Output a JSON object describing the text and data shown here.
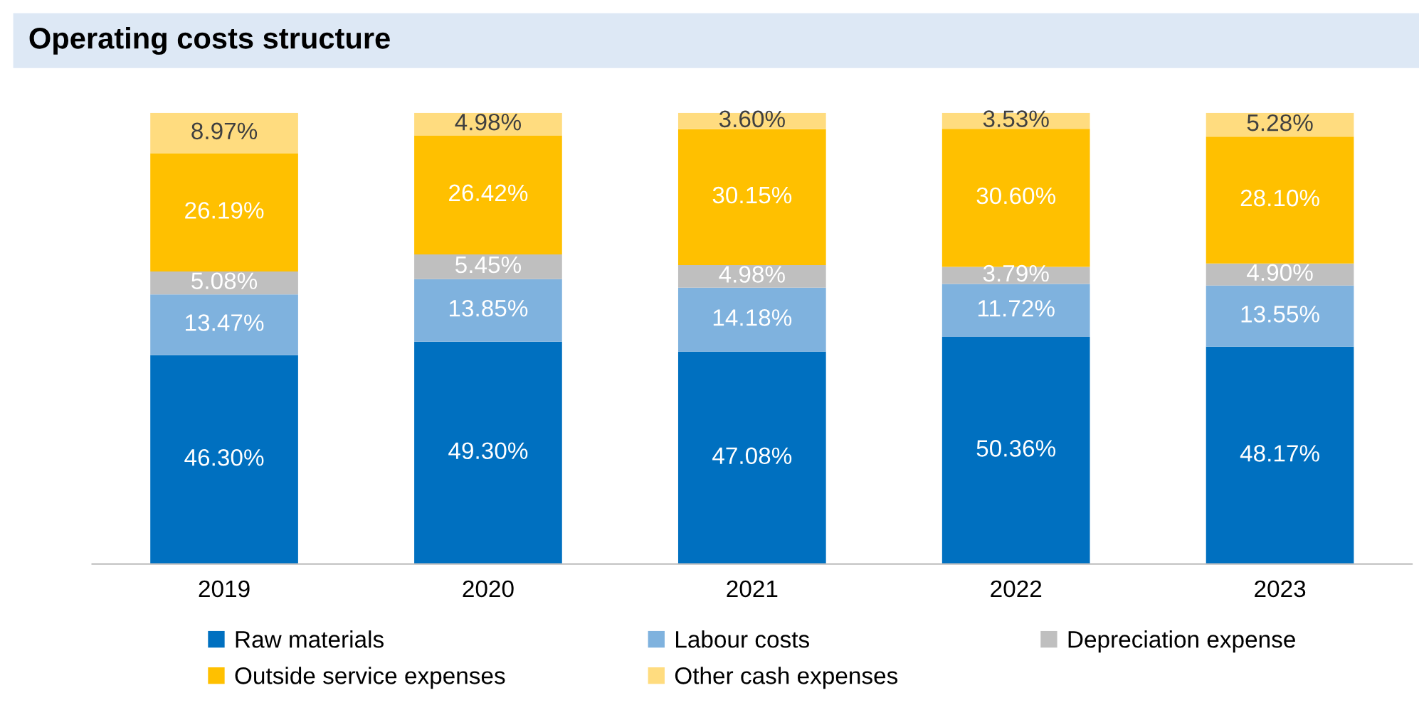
{
  "chart_data": {
    "type": "bar",
    "title": "Operating costs structure",
    "stacked": true,
    "legend": "bottom",
    "grid": false,
    "categories": [
      "2019",
      "2020",
      "2021",
      "2022",
      "2023"
    ],
    "series": [
      {
        "name": "Raw materials",
        "color": "#0070c0",
        "values": [
          46.3,
          49.3,
          47.08,
          50.36,
          48.17
        ],
        "value_labels": [
          "46.30%",
          "49.30%",
          "47.08%",
          "50.36%",
          "48.17%"
        ]
      },
      {
        "name": "Labour costs",
        "color": "#7fb2de",
        "values": [
          13.47,
          13.85,
          14.18,
          11.72,
          13.55
        ],
        "value_labels": [
          "13.47%",
          "13.85%",
          "14.18%",
          "11.72%",
          "13.55%"
        ]
      },
      {
        "name": "Depreciation expense",
        "color": "#bfbfbf",
        "values": [
          5.08,
          5.45,
          4.98,
          3.79,
          4.9
        ],
        "value_labels": [
          "5.08%",
          "5.45%",
          "4.98%",
          "3.79%",
          "4.90%"
        ]
      },
      {
        "name": "Outside service expenses",
        "color": "#ffc000",
        "values": [
          26.19,
          26.42,
          30.15,
          30.6,
          28.1
        ],
        "value_labels": [
          "26.19%",
          "26.42%",
          "30.15%",
          "30.60%",
          "28.10%"
        ]
      },
      {
        "name": "Other cash expenses",
        "color": "#ffdc7f",
        "values": [
          8.97,
          4.98,
          3.6,
          3.53,
          5.28
        ],
        "value_labels": [
          "8.97%",
          "4.98%",
          "3.60%",
          "3.53%",
          "5.28%"
        ]
      }
    ]
  }
}
